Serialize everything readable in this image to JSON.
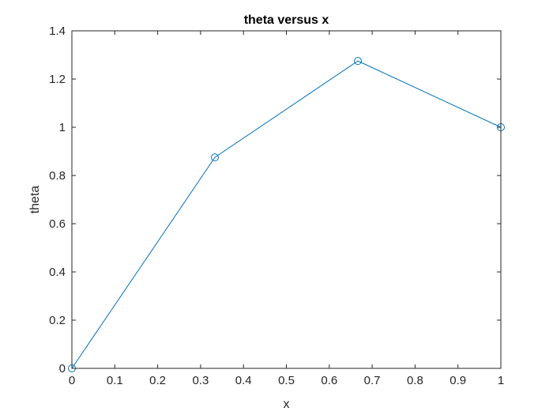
{
  "chart_data": {
    "type": "line",
    "title": "theta versus x",
    "xlabel": "x",
    "ylabel": "theta",
    "xlim": [
      0,
      1
    ],
    "ylim": [
      0,
      1.4
    ],
    "xticks": [
      0,
      0.1,
      0.2,
      0.3,
      0.4,
      0.5,
      0.6,
      0.7,
      0.8,
      0.9,
      1
    ],
    "xtick_labels": [
      "0",
      "0.1",
      "0.2",
      "0.3",
      "0.4",
      "0.5",
      "0.6",
      "0.7",
      "0.8",
      "0.9",
      "1"
    ],
    "yticks": [
      0,
      0.2,
      0.4,
      0.6,
      0.8,
      1,
      1.2,
      1.4
    ],
    "ytick_labels": [
      "0",
      "0.2",
      "0.4",
      "0.6",
      "0.8",
      "1",
      "1.2",
      "1.4"
    ],
    "grid": false,
    "marker": "open-circle",
    "series": [
      {
        "x": [
          0,
          0.3333,
          0.6667,
          1
        ],
        "y": [
          0,
          0.875,
          1.275,
          1.0
        ],
        "color": "#0072BD"
      }
    ]
  }
}
